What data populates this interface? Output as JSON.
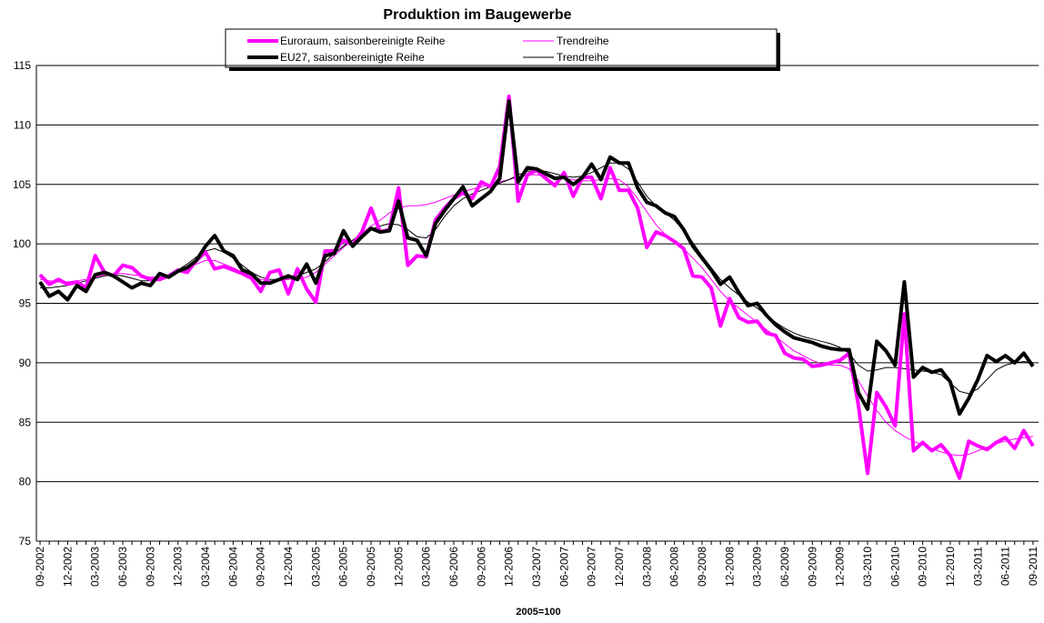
{
  "chart_data": {
    "type": "line",
    "title": "Produktion im Baugewerbe",
    "x_label": "2005=100",
    "categories": [
      "09-2002",
      null,
      null,
      "12-2002",
      null,
      null,
      "03-2003",
      null,
      null,
      "06-2003",
      null,
      null,
      "09-2003",
      null,
      null,
      "12-2003",
      null,
      null,
      "03-2004",
      null,
      null,
      "06-2004",
      null,
      null,
      "09-2004",
      null,
      null,
      "12-2004",
      null,
      null,
      "03-2005",
      null,
      null,
      "06-2005",
      null,
      null,
      "09-2005",
      null,
      null,
      "12-2005",
      null,
      null,
      "03-2006",
      null,
      null,
      "06-2006",
      null,
      null,
      "09-2006",
      null,
      null,
      "12-2006",
      null,
      null,
      "03-2007",
      null,
      null,
      "06-2007",
      null,
      null,
      "09-2007",
      null,
      null,
      "12-2007",
      null,
      null,
      "03-2008",
      null,
      null,
      "06-2008",
      null,
      null,
      "09-2008",
      null,
      null,
      "12-2008",
      null,
      null,
      "03-2009",
      null,
      null,
      "06-2009",
      null,
      null,
      "09-2009",
      null,
      null,
      "12-2009",
      null,
      null,
      "03-2010",
      null,
      null,
      "06-2010",
      null,
      null,
      "09-2010",
      null,
      null,
      "12-2010",
      null,
      null,
      "03-2011",
      null,
      null,
      "06-2011",
      null,
      null,
      "09-2011"
    ],
    "series": [
      {
        "name": "Euroraum, saisonbereinigte Reihe",
        "color": "#ff00ff",
        "line_width": 4,
        "values": [
          97.4,
          96.6,
          97.0,
          96.6,
          96.8,
          96.3,
          99.0,
          97.6,
          97.3,
          98.2,
          98.0,
          97.3,
          97.0,
          97.0,
          97.3,
          97.8,
          97.6,
          98.6,
          99.3,
          97.9,
          98.1,
          97.8,
          97.5,
          97.1,
          96.0,
          97.6,
          97.8,
          95.8,
          97.9,
          96.2,
          95.1,
          99.4,
          99.4,
          100.3,
          99.9,
          101.0,
          103.0,
          101.0,
          101.2,
          104.7,
          98.2,
          99.0,
          98.9,
          102.0,
          103.0,
          103.8,
          104.3,
          103.8,
          105.2,
          104.8,
          106.5,
          112.4,
          103.6,
          105.8,
          106.2,
          105.5,
          104.9,
          106.0,
          104.0,
          105.6,
          105.6,
          103.8,
          106.4,
          104.5,
          104.5,
          103.0,
          99.7,
          101.0,
          100.7,
          100.2,
          99.6,
          97.3,
          97.2,
          96.3,
          93.1,
          95.4,
          93.8,
          93.4,
          93.5,
          92.5,
          92.3,
          90.8,
          90.4,
          90.3,
          89.7,
          89.8,
          90.0,
          90.2,
          90.8,
          86.5,
          80.7,
          87.5,
          86.3,
          84.7,
          94.1,
          82.6,
          83.3,
          82.6,
          83.1,
          82.2,
          80.3,
          83.4,
          83.0,
          82.7,
          83.3,
          83.7,
          82.8,
          84.3,
          83.0
        ]
      },
      {
        "name": "Trendreihe",
        "color": "#ff00ff",
        "line_width": 1,
        "values": [
          97.0,
          96.9,
          96.8,
          96.8,
          96.9,
          97.0,
          97.2,
          97.4,
          97.5,
          97.5,
          97.4,
          97.3,
          97.2,
          97.2,
          97.4,
          97.7,
          98.0,
          98.3,
          98.6,
          98.6,
          98.3,
          98.0,
          97.6,
          97.3,
          97.0,
          96.9,
          96.9,
          97.0,
          97.0,
          97.2,
          97.6,
          98.3,
          99.0,
          99.7,
          100.3,
          100.9,
          101.5,
          102.0,
          102.6,
          103.0,
          103.2,
          103.2,
          103.3,
          103.5,
          103.8,
          104.1,
          104.4,
          104.6,
          104.8,
          105.0,
          105.2,
          105.4,
          105.6,
          105.8,
          105.8,
          105.7,
          105.6,
          105.5,
          105.4,
          105.3,
          105.3,
          105.4,
          105.5,
          105.4,
          104.8,
          103.8,
          102.7,
          101.6,
          100.8,
          100.2,
          99.6,
          98.8,
          98.0,
          97.0,
          96.0,
          95.2,
          94.6,
          94.0,
          93.4,
          92.8,
          92.2,
          91.6,
          91.0,
          90.6,
          90.2,
          89.9,
          89.8,
          89.8,
          89.5,
          88.5,
          87.2,
          86.0,
          85.0,
          84.3,
          83.8,
          83.4,
          83.1,
          82.8,
          82.5,
          82.3,
          82.2,
          82.3,
          82.6,
          82.9,
          83.2,
          83.4,
          83.6,
          83.7,
          83.8
        ]
      },
      {
        "name": "EU27, saisonbereinigte Reihe",
        "color": "#000000",
        "line_width": 4,
        "values": [
          96.8,
          95.6,
          96.0,
          95.3,
          96.5,
          96.0,
          97.4,
          97.6,
          97.3,
          96.8,
          96.3,
          96.7,
          96.5,
          97.5,
          97.2,
          97.7,
          98.0,
          98.6,
          99.8,
          100.7,
          99.4,
          99.0,
          97.8,
          97.5,
          96.7,
          96.7,
          97.0,
          97.3,
          97.0,
          98.3,
          96.7,
          99.0,
          99.2,
          101.1,
          99.8,
          100.6,
          101.3,
          101.0,
          101.1,
          103.6,
          100.5,
          100.3,
          99.0,
          101.7,
          102.8,
          103.8,
          104.8,
          103.2,
          103.8,
          104.4,
          105.5,
          112.0,
          105.2,
          106.4,
          106.3,
          105.9,
          105.5,
          105.6,
          105.0,
          105.6,
          106.7,
          105.4,
          107.3,
          106.8,
          106.8,
          104.7,
          103.5,
          103.2,
          102.6,
          102.3,
          101.2,
          99.8,
          98.8,
          97.8,
          96.6,
          97.2,
          95.9,
          94.8,
          95.0,
          94.0,
          93.2,
          92.6,
          92.1,
          91.9,
          91.7,
          91.4,
          91.2,
          91.1,
          91.1,
          87.5,
          86.1,
          91.8,
          91.0,
          89.8,
          96.8,
          88.8,
          89.6,
          89.2,
          89.4,
          88.4,
          85.7,
          87.0,
          88.6,
          90.6,
          90.1,
          90.6,
          90.0,
          90.8,
          89.7
        ]
      },
      {
        "name": "Trendreihe",
        "color": "#000000",
        "line_width": 1,
        "values": [
          96.3,
          96.3,
          96.4,
          96.5,
          96.7,
          96.9,
          97.1,
          97.3,
          97.4,
          97.3,
          97.1,
          96.9,
          96.9,
          97.1,
          97.4,
          97.8,
          98.3,
          98.9,
          99.4,
          99.6,
          99.3,
          98.8,
          98.2,
          97.6,
          97.2,
          97.0,
          97.0,
          97.1,
          97.3,
          97.6,
          97.9,
          98.5,
          99.2,
          99.8,
          100.3,
          100.8,
          101.2,
          101.5,
          101.7,
          101.6,
          101.2,
          100.6,
          100.5,
          101.2,
          102.3,
          103.2,
          103.8,
          104.2,
          104.5,
          104.8,
          105.1,
          105.4,
          105.8,
          106.1,
          106.2,
          106.1,
          105.9,
          105.7,
          105.6,
          105.7,
          106.0,
          106.4,
          106.8,
          106.8,
          106.3,
          105.2,
          104.0,
          103.2,
          102.6,
          102.0,
          101.1,
          100.1,
          99.0,
          98.0,
          97.0,
          96.3,
          95.7,
          95.1,
          94.6,
          94.0,
          93.4,
          92.9,
          92.5,
          92.2,
          92.0,
          91.8,
          91.6,
          91.3,
          90.8,
          89.8,
          89.3,
          89.4,
          89.6,
          89.6,
          89.5,
          89.4,
          89.3,
          89.2,
          89.0,
          88.3,
          87.6,
          87.4,
          87.8,
          88.6,
          89.4,
          89.8,
          90.0,
          90.1,
          90.0
        ]
      }
    ],
    "ylim": [
      75,
      115
    ],
    "yticks": [
      75,
      80,
      85,
      90,
      95,
      100,
      105,
      110,
      115
    ],
    "grid": true
  }
}
